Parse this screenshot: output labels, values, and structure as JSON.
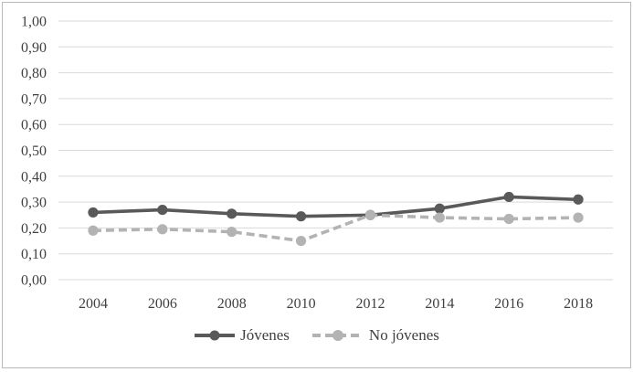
{
  "chart_data": {
    "type": "line",
    "title": "",
    "xlabel": "",
    "ylabel": "",
    "categories": [
      "2004",
      "2006",
      "2008",
      "2010",
      "2012",
      "2014",
      "2016",
      "2018"
    ],
    "series": [
      {
        "name": "Jóvenes",
        "style": "solid",
        "color": "#595959",
        "values": [
          0.26,
          0.27,
          0.255,
          0.245,
          0.25,
          0.275,
          0.32,
          0.31
        ]
      },
      {
        "name": "No jóvenes",
        "style": "dashed",
        "color": "#b3b3b3",
        "values": [
          0.19,
          0.195,
          0.185,
          0.15,
          0.25,
          0.24,
          0.235,
          0.24
        ]
      }
    ],
    "ylim": [
      0,
      1
    ],
    "y_step": 0.1,
    "y_tick_labels": [
      "0,00",
      "0,10",
      "0,20",
      "0,30",
      "0,40",
      "0,50",
      "0,60",
      "0,70",
      "0,80",
      "0,90",
      "1,00"
    ],
    "grid": true,
    "legend_position": "bottom",
    "colors": {
      "gridline": "#d9d9d9",
      "axis_text": "#404040",
      "frame_border": "#b9b9b9"
    }
  }
}
